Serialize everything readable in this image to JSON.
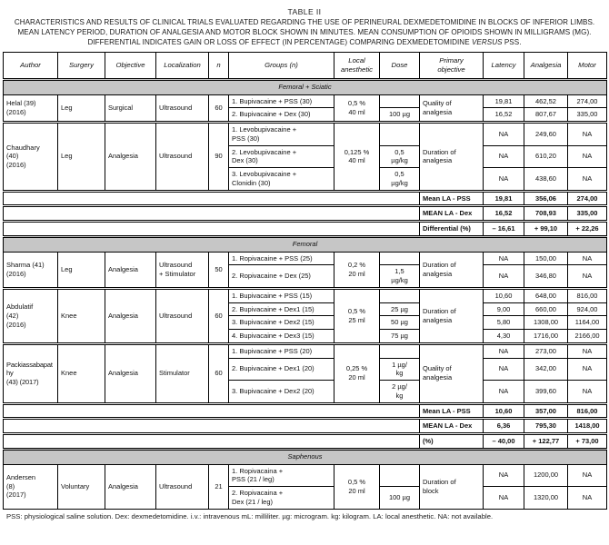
{
  "title": "TABLE II",
  "caption": {
    "part1": "CHARACTERISTICS AND RESULTS OF CLINICAL TRIALS EVALUATED REGARDING THE USE OF PERINEURAL DEXMEDETOMIDINE IN BLOCKS OF INFERIOR LIMBS. MEAN LATENCY PERIOD, DURATION OF ANALGESIA AND MOTOR BLOCK SHOWN IN MINUTES. MEAN CONSUMPTION OF OPIOIDS SHOWN IN MILLIGRAMS (MG). DIFFERENTIAL INDICATES GAIN OR LOSS OF EFFECT (IN PERCENTAGE) COMPARING DEXMEDETOMIDINE ",
    "versus": "VERSUS",
    "part3": " PSS."
  },
  "footnote": "PSS: physiological saline solution. Dex: dexmedetomidine. i.v.: intravenous mL: milliliter. µg: microgram. kg: kilogram. LA: local anesthetic. NA: not available.",
  "colors": {
    "section_bg": "#c6c6c6",
    "border": "#000000",
    "page_bg": "#ffffff"
  },
  "table": {
    "columns": [
      "Author",
      "Surgery",
      "Objective",
      "Localization",
      "n",
      "Groups (n)",
      "Local anesthetic",
      "Dose",
      "Primary objective",
      "Latency",
      "Analgesia",
      "Motor"
    ],
    "rows": [
      {
        "name": "column-header-row",
        "cls": "hdr",
        "cells": [
          {
            "t": "Author"
          },
          {
            "t": "Surgery"
          },
          {
            "t": "Objective"
          },
          {
            "t": "Localization"
          },
          {
            "t": "n"
          },
          {
            "t": "Groups (n)"
          },
          {
            "t": "Local\nanesthetic"
          },
          {
            "t": "Dose"
          },
          {
            "t": "Primary\nobjective"
          },
          {
            "t": "Latency"
          },
          {
            "t": "Analgesia"
          },
          {
            "t": "Motor"
          }
        ]
      },
      {
        "name": "section-row-femoral-sciatic",
        "cls": "sec bt",
        "cells": [
          {
            "t": "Femoral + Sciatic",
            "cs": 12
          }
        ]
      },
      {
        "name": "study-row-helal-1",
        "cells": [
          {
            "t": "Helal (39)\n(2016)",
            "rs": 2,
            "cls": "L",
            "n": "author-cell"
          },
          {
            "t": "Leg",
            "rs": 2,
            "cls": "L"
          },
          {
            "t": "Surgical",
            "rs": 2,
            "cls": "L"
          },
          {
            "t": "Ultrasound",
            "rs": 2,
            "cls": "L"
          },
          {
            "t": "60",
            "rs": 2
          },
          {
            "t": "1. Bupivacaine + PSS (30)",
            "cls": "L"
          },
          {
            "t": "0,5 %\n40 ml",
            "rs": 2
          },
          {
            "t": ""
          },
          {
            "t": "Quality of\nanalgesia",
            "rs": 2,
            "cls": "L"
          },
          {
            "t": "19,81"
          },
          {
            "t": "462,52"
          },
          {
            "t": "274,00"
          }
        ]
      },
      {
        "name": "study-row-helal-2",
        "cells": [
          {
            "t": "2. Bupivacaine + Dex (30)",
            "cls": "L"
          },
          {
            "t": "100 µg"
          },
          {
            "t": "16,52"
          },
          {
            "t": "807,67"
          },
          {
            "t": "335,00"
          }
        ]
      },
      {
        "name": "study-row-chaudhary-1",
        "cls": "bt",
        "cells": [
          {
            "t": "Chaudhary\n(40)\n(2016)",
            "rs": 3,
            "cls": "L",
            "n": "author-cell"
          },
          {
            "t": "Leg",
            "rs": 3,
            "cls": "L"
          },
          {
            "t": "Analgesia",
            "rs": 3,
            "cls": "L"
          },
          {
            "t": "Ultrasound",
            "rs": 3,
            "cls": "L"
          },
          {
            "t": "90",
            "rs": 3
          },
          {
            "t": "1. Levobupivacaine +\nPSS (30)",
            "cls": "L"
          },
          {
            "t": "0,125 %\n40 ml",
            "rs": 3
          },
          {
            "t": ""
          },
          {
            "t": "Duration of\nanalgesia",
            "rs": 3,
            "cls": "L"
          },
          {
            "t": "NA"
          },
          {
            "t": "249,60"
          },
          {
            "t": "NA"
          }
        ]
      },
      {
        "name": "study-row-chaudhary-2",
        "cells": [
          {
            "t": "2. Levobupivacaine +\nDex (30)",
            "cls": "L"
          },
          {
            "t": "0,5\nµg/kg"
          },
          {
            "t": "NA"
          },
          {
            "t": "610,20"
          },
          {
            "t": "NA"
          }
        ]
      },
      {
        "name": "study-row-chaudhary-3",
        "cells": [
          {
            "t": "3. Levobupivacaine +\nClonidin (30)",
            "cls": "L"
          },
          {
            "t": "0,5\nµg/kg"
          },
          {
            "t": "NA"
          },
          {
            "t": "438,60"
          },
          {
            "t": "NA"
          }
        ]
      },
      {
        "name": "summary-row-mean-pss-1",
        "cls": "bt sum",
        "cells": [
          {
            "t": "",
            "cs": 8
          },
          {
            "t": "Mean LA - PSS",
            "cls": "L"
          },
          {
            "t": "19,81"
          },
          {
            "t": "356,06"
          },
          {
            "t": "274,00"
          }
        ]
      },
      {
        "name": "summary-row-mean-dex-1",
        "cls": "bt sum",
        "cells": [
          {
            "t": "",
            "cs": 8
          },
          {
            "t": "MEAN LA - Dex",
            "cls": "L"
          },
          {
            "t": "16,52"
          },
          {
            "t": "708,93"
          },
          {
            "t": "335,00"
          }
        ]
      },
      {
        "name": "summary-row-differential-1",
        "cls": "bt sum",
        "cells": [
          {
            "t": "",
            "cs": 8
          },
          {
            "t": "Differential (%)",
            "cls": "L"
          },
          {
            "t": "– 16,61"
          },
          {
            "t": "+ 99,10"
          },
          {
            "t": "+ 22,26"
          }
        ]
      },
      {
        "name": "section-row-femoral",
        "cls": "sec bt",
        "cells": [
          {
            "t": "Femoral",
            "cs": 12
          }
        ]
      },
      {
        "name": "study-row-sharma-1",
        "cells": [
          {
            "t": "Sharma (41)\n(2016)",
            "rs": 2,
            "cls": "L",
            "n": "author-cell"
          },
          {
            "t": "Leg",
            "rs": 2,
            "cls": "L"
          },
          {
            "t": "Analgesia",
            "rs": 2,
            "cls": "L"
          },
          {
            "t": "Ultrasound\n+ Stimulator",
            "rs": 2,
            "cls": "L"
          },
          {
            "t": "50",
            "rs": 2
          },
          {
            "t": "1. Ropivacaine + PSS (25)",
            "cls": "L"
          },
          {
            "t": "0,2 %\n20 ml",
            "rs": 2
          },
          {
            "t": ""
          },
          {
            "t": "Duration of\nanalgesia",
            "rs": 2,
            "cls": "L"
          },
          {
            "t": "NA"
          },
          {
            "t": "150,00"
          },
          {
            "t": "NA"
          }
        ]
      },
      {
        "name": "study-row-sharma-2",
        "cells": [
          {
            "t": "2. Ropivacaine + Dex (25)",
            "cls": "L"
          },
          {
            "t": "1,5\nµg/kg"
          },
          {
            "t": "NA"
          },
          {
            "t": "346,80"
          },
          {
            "t": "NA"
          }
        ]
      },
      {
        "name": "study-row-abdulatif-1",
        "cls": "bt",
        "cells": [
          {
            "t": "Abdulatif\n(42)\n(2016)",
            "rs": 4,
            "cls": "L",
            "n": "author-cell"
          },
          {
            "t": "Knee",
            "rs": 4,
            "cls": "L"
          },
          {
            "t": "Analgesia",
            "rs": 4,
            "cls": "L"
          },
          {
            "t": "Ultrasound",
            "rs": 4,
            "cls": "L"
          },
          {
            "t": "60",
            "rs": 4
          },
          {
            "t": "1. Bupivacaine + PSS (15)",
            "cls": "L"
          },
          {
            "t": "0,5 %\n25 ml",
            "rs": 4
          },
          {
            "t": ""
          },
          {
            "t": "Duration of\nanalgesia",
            "rs": 4,
            "cls": "L"
          },
          {
            "t": "10,60"
          },
          {
            "t": "648,00"
          },
          {
            "t": "816,00"
          }
        ]
      },
      {
        "name": "study-row-abdulatif-2",
        "cells": [
          {
            "t": "2. Bupivacaine + Dex1 (15)",
            "cls": "L"
          },
          {
            "t": "25 µg"
          },
          {
            "t": "9,00"
          },
          {
            "t": "660,00"
          },
          {
            "t": "924,00"
          }
        ]
      },
      {
        "name": "study-row-abdulatif-3",
        "cells": [
          {
            "t": "3. Bupivacaine + Dex2 (15)",
            "cls": "L"
          },
          {
            "t": "50 µg"
          },
          {
            "t": "5,80"
          },
          {
            "t": "1308,00"
          },
          {
            "t": "1164,00"
          }
        ]
      },
      {
        "name": "study-row-abdulatif-4",
        "cells": [
          {
            "t": "4. Bupivacaine + Dex3 (15)",
            "cls": "L"
          },
          {
            "t": "75 µg"
          },
          {
            "t": "4,30"
          },
          {
            "t": "1716,00"
          },
          {
            "t": "2166,00"
          }
        ]
      },
      {
        "name": "study-row-packiassabapathy-1",
        "cls": "bt",
        "cells": [
          {
            "t": "Packiassabapathy\n(43) (2017)",
            "rs": 3,
            "cls": "L small",
            "n": "author-cell"
          },
          {
            "t": "Knee",
            "rs": 3,
            "cls": "L"
          },
          {
            "t": "Analgesia",
            "rs": 3,
            "cls": "L"
          },
          {
            "t": "Stimulator",
            "rs": 3,
            "cls": "L"
          },
          {
            "t": "60",
            "rs": 3
          },
          {
            "t": "1. Bupivacaine + PSS (20)",
            "cls": "L"
          },
          {
            "t": "0,25 %\n20 ml",
            "rs": 3
          },
          {
            "t": ""
          },
          {
            "t": "Quality of\nanalgesia",
            "rs": 3,
            "cls": "L"
          },
          {
            "t": "NA"
          },
          {
            "t": "273,00"
          },
          {
            "t": "NA"
          }
        ]
      },
      {
        "name": "study-row-packiassabapathy-2",
        "cells": [
          {
            "t": "2. Bupivacaine + Dex1 (20)",
            "cls": "L"
          },
          {
            "t": "1 µg/\nkg"
          },
          {
            "t": "NA"
          },
          {
            "t": "342,00"
          },
          {
            "t": "NA"
          }
        ]
      },
      {
        "name": "study-row-packiassabapathy-3",
        "cells": [
          {
            "t": "3. Bupivacaine + Dex2 (20)",
            "cls": "L"
          },
          {
            "t": "2 µg/\nkg"
          },
          {
            "t": "NA"
          },
          {
            "t": "399,60"
          },
          {
            "t": "NA"
          }
        ]
      },
      {
        "name": "summary-row-mean-pss-2",
        "cls": "bt sum",
        "cells": [
          {
            "t": "",
            "cs": 8
          },
          {
            "t": "Mean LA - PSS",
            "cls": "L"
          },
          {
            "t": "10,60"
          },
          {
            "t": "357,00"
          },
          {
            "t": "816,00"
          }
        ]
      },
      {
        "name": "summary-row-mean-dex-2",
        "cls": "bt sum",
        "cells": [
          {
            "t": "",
            "cs": 8
          },
          {
            "t": "MEAN LA - Dex",
            "cls": "L"
          },
          {
            "t": "6,36"
          },
          {
            "t": "795,30"
          },
          {
            "t": "1418,00"
          }
        ]
      },
      {
        "name": "summary-row-differential-2",
        "cls": "bt sum",
        "cells": [
          {
            "t": "",
            "cs": 8
          },
          {
            "t": "(%)",
            "cls": "L"
          },
          {
            "t": "– 40,00"
          },
          {
            "t": "+ 122,77"
          },
          {
            "t": "+ 73,00"
          }
        ]
      },
      {
        "name": "section-row-saphenous",
        "cls": "sec bt",
        "cells": [
          {
            "t": "Saphenous",
            "cs": 12
          }
        ]
      },
      {
        "name": "study-row-andersen-1",
        "cells": [
          {
            "t": "Andersen\n(8)\n(2017)",
            "rs": 2,
            "cls": "L",
            "n": "author-cell"
          },
          {
            "t": "Voluntary",
            "rs": 2,
            "cls": "L"
          },
          {
            "t": "Analgesia",
            "rs": 2,
            "cls": "L"
          },
          {
            "t": "Ultrasound",
            "rs": 2,
            "cls": "L"
          },
          {
            "t": "21",
            "rs": 2
          },
          {
            "t": "1. Ropivacaina +\nPSS (21 / leg)",
            "cls": "L"
          },
          {
            "t": "0,5 %\n20 ml",
            "rs": 2
          },
          {
            "t": ""
          },
          {
            "t": "Duration of\nblock",
            "rs": 2,
            "cls": "L"
          },
          {
            "t": "NA"
          },
          {
            "t": "1200,00"
          },
          {
            "t": "NA"
          }
        ]
      },
      {
        "name": "study-row-andersen-2",
        "cells": [
          {
            "t": "2. Ropivacaina +\nDex (21 / leg)",
            "cls": "L"
          },
          {
            "t": "100 µg"
          },
          {
            "t": "NA"
          },
          {
            "t": "1320,00"
          },
          {
            "t": "NA"
          }
        ]
      }
    ]
  }
}
